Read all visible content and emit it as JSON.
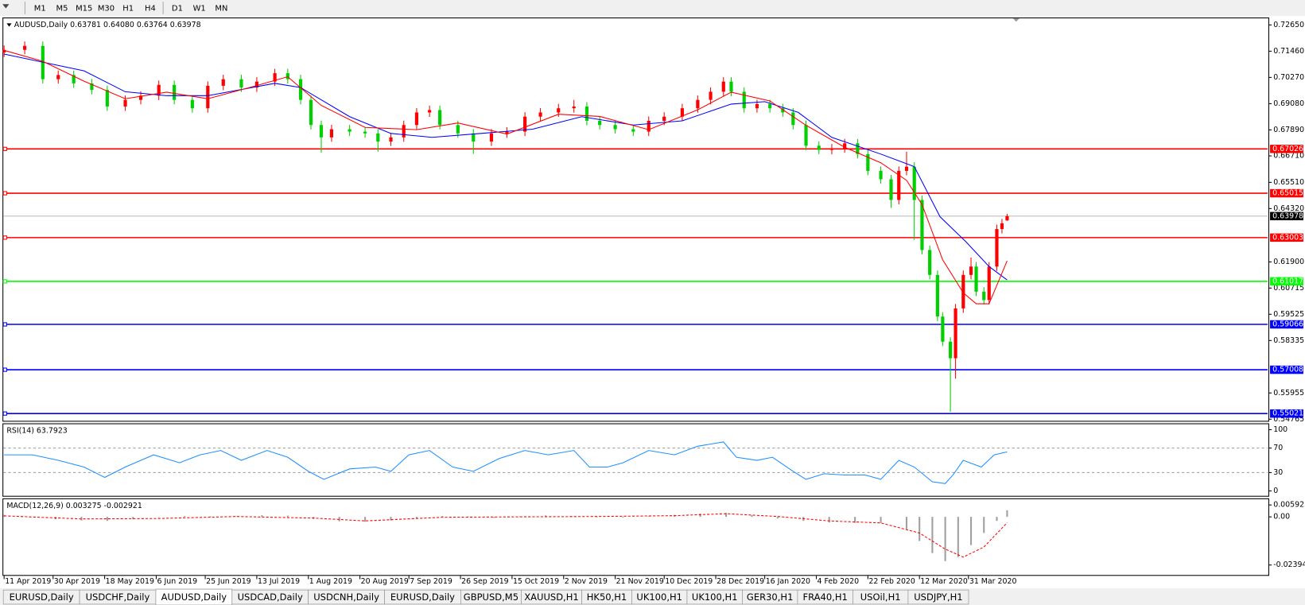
{
  "toolbar": {
    "timeframes": [
      "M1",
      "M5",
      "M15",
      "M30",
      "H1",
      "H4",
      "D1",
      "W1",
      "MN"
    ]
  },
  "tabs": [
    "EURUSD,Daily",
    "USDCHF,Daily",
    "AUDUSD,Daily",
    "USDCAD,Daily",
    "USDCNH,Daily",
    "EURUSD,Daily",
    "GBPUSD,M5",
    "XAUUSD,H1",
    "HK50,H1",
    "UK100,H1",
    "UK100,H1",
    "GER30,H1",
    "FRA40,H1",
    "USOil,H1",
    "USDJPY,H1"
  ],
  "active_tab": 2,
  "chart_data": [
    {
      "type": "candlestick",
      "title": "AUDUSD,Daily  0.63781 0.64080 0.63764 0.63978",
      "x": [
        0,
        8,
        15,
        21,
        27,
        34,
        40,
        47,
        53,
        60,
        66,
        73,
        79,
        85,
        92,
        98,
        105,
        110,
        115,
        119,
        123,
        127,
        134,
        140,
        145,
        150,
        155,
        160,
        165,
        169,
        176,
        182,
        189,
        195,
        202,
        208,
        215,
        221,
        226,
        231,
        237,
        244,
        250,
        256,
        263,
        269,
        274,
        279,
        282,
        287,
        292,
        297,
        302,
        306,
        311,
        316,
        321,
        326,
        331,
        335,
        340,
        344,
        347,
        350,
        353,
        356,
        359,
        362,
        364,
        367,
        369,
        372,
        375,
        377,
        380,
        382,
        385,
        387,
        389
      ],
      "open": [
        0.714,
        0.7152,
        0.717,
        0.7019,
        0.7038,
        0.7,
        0.697,
        0.6895,
        0.6925,
        0.6944,
        0.6993,
        0.6925,
        0.6887,
        0.6989,
        0.7019,
        0.6981,
        0.7008,
        0.7046,
        0.7019,
        0.6925,
        0.6811,
        0.6755,
        0.6792,
        0.6781,
        0.6773,
        0.6736,
        0.6755,
        0.6811,
        0.6868,
        0.6879,
        0.6811,
        0.6773,
        0.6736,
        0.6773,
        0.6781,
        0.6849,
        0.6868,
        0.6887,
        0.6895,
        0.683,
        0.6811,
        0.6792,
        0.6781,
        0.683,
        0.6849,
        0.6887,
        0.6925,
        0.6962,
        0.7008,
        0.6962,
        0.6887,
        0.6906,
        0.6887,
        0.6868,
        0.6811,
        0.6717,
        0.6698,
        0.6705,
        0.6728,
        0.6679,
        0.6603,
        0.6565,
        0.6471,
        0.6603,
        0.6622,
        0.6471,
        0.6244,
        0.6131,
        0.5942,
        0.5828,
        0.5753,
        0.5979,
        0.6131,
        0.6169,
        0.6055,
        0.6017,
        0.6169,
        0.6339,
        0.63781
      ],
      "high": [
        0.7172,
        0.719,
        0.719,
        0.7058,
        0.7058,
        0.702,
        0.699,
        0.6945,
        0.6964,
        0.7013,
        0.7013,
        0.6945,
        0.7009,
        0.7039,
        0.7039,
        0.7028,
        0.7066,
        0.7066,
        0.7039,
        0.6945,
        0.6831,
        0.6812,
        0.6812,
        0.6801,
        0.6793,
        0.6775,
        0.6831,
        0.6888,
        0.6899,
        0.6899,
        0.6831,
        0.6793,
        0.6793,
        0.6801,
        0.6869,
        0.6888,
        0.6907,
        0.6925,
        0.6915,
        0.685,
        0.6831,
        0.6812,
        0.685,
        0.6869,
        0.6907,
        0.6945,
        0.6982,
        0.7028,
        0.7028,
        0.6982,
        0.6926,
        0.6926,
        0.6907,
        0.6888,
        0.6831,
        0.6737,
        0.6725,
        0.6748,
        0.6748,
        0.6699,
        0.6623,
        0.6585,
        0.6623,
        0.669,
        0.6642,
        0.6491,
        0.6264,
        0.6151,
        0.5962,
        0.5848,
        0.5999,
        0.6151,
        0.621,
        0.6189,
        0.6075,
        0.6189,
        0.6359,
        0.6385,
        0.6408
      ],
      "low": [
        0.712,
        0.7132,
        0.6999,
        0.6999,
        0.698,
        0.695,
        0.6875,
        0.6875,
        0.6905,
        0.6924,
        0.6905,
        0.6867,
        0.6867,
        0.6969,
        0.6961,
        0.6961,
        0.6988,
        0.6999,
        0.6905,
        0.6791,
        0.6685,
        0.6735,
        0.6761,
        0.6753,
        0.669,
        0.6716,
        0.6735,
        0.6791,
        0.6848,
        0.6791,
        0.6753,
        0.668,
        0.6716,
        0.6753,
        0.6761,
        0.6829,
        0.6848,
        0.6867,
        0.681,
        0.6791,
        0.6772,
        0.6761,
        0.6761,
        0.681,
        0.6829,
        0.6867,
        0.6905,
        0.6942,
        0.6942,
        0.6867,
        0.6867,
        0.6867,
        0.6848,
        0.6791,
        0.6697,
        0.6678,
        0.6678,
        0.6685,
        0.6659,
        0.6583,
        0.6545,
        0.6435,
        0.6451,
        0.6583,
        0.629,
        0.6224,
        0.6111,
        0.5922,
        0.5808,
        0.551,
        0.566,
        0.5959,
        0.6111,
        0.6035,
        0.5997,
        0.5997,
        0.6149,
        0.6319,
        0.63764
      ],
      "close": [
        0.7152,
        0.717,
        0.7019,
        0.7038,
        0.7,
        0.697,
        0.6895,
        0.6925,
        0.6944,
        0.6993,
        0.6925,
        0.6887,
        0.6989,
        0.7019,
        0.6981,
        0.7008,
        0.7046,
        0.7019,
        0.6925,
        0.6811,
        0.6755,
        0.6792,
        0.6781,
        0.6773,
        0.6736,
        0.6755,
        0.6811,
        0.6868,
        0.6879,
        0.6811,
        0.6773,
        0.6736,
        0.6773,
        0.6781,
        0.6849,
        0.6868,
        0.6887,
        0.6895,
        0.683,
        0.6811,
        0.6792,
        0.6781,
        0.683,
        0.6849,
        0.6887,
        0.6925,
        0.6962,
        0.7008,
        0.6962,
        0.6887,
        0.6906,
        0.6887,
        0.6868,
        0.6811,
        0.6717,
        0.6698,
        0.6705,
        0.6728,
        0.6679,
        0.6603,
        0.6565,
        0.6471,
        0.6603,
        0.6622,
        0.6471,
        0.6244,
        0.6131,
        0.5942,
        0.5828,
        0.5753,
        0.5979,
        0.6131,
        0.6169,
        0.6055,
        0.6017,
        0.6169,
        0.6339,
        0.6365,
        0.63978
      ],
      "up_color": "#ff0000",
      "down_color": "#00d000",
      "series": [
        {
          "color": "#0000ff",
          "x": [
            0,
            31,
            47,
            63,
            79,
            105,
            115,
            134,
            150,
            166,
            185,
            205,
            224,
            244,
            263,
            282,
            295,
            308,
            321,
            340,
            353,
            363,
            373,
            382,
            389
          ],
          "values": [
            0.7133,
            0.7057,
            0.6962,
            0.6944,
            0.6944,
            0.7,
            0.6981,
            0.6849,
            0.6773,
            0.6755,
            0.6773,
            0.6792,
            0.6849,
            0.6811,
            0.683,
            0.6906,
            0.6917,
            0.6868,
            0.6755,
            0.6679,
            0.6622,
            0.6395,
            0.6282,
            0.6169,
            0.6108
          ]
        },
        {
          "color": "#ff0000",
          "x": [
            0,
            15,
            31,
            47,
            63,
            79,
            98,
            110,
            123,
            140,
            160,
            176,
            195,
            215,
            231,
            250,
            269,
            282,
            297,
            311,
            326,
            340,
            350,
            356,
            364,
            372,
            377,
            382,
            389
          ],
          "values": [
            0.715,
            0.71,
            0.701,
            0.693,
            0.696,
            0.693,
            0.699,
            0.703,
            0.69,
            0.68,
            0.679,
            0.682,
            0.677,
            0.686,
            0.685,
            0.679,
            0.688,
            0.696,
            0.692,
            0.681,
            0.671,
            0.664,
            0.656,
            0.645,
            0.62,
            0.605,
            0.6,
            0.6,
            0.6195
          ]
        }
      ],
      "levels": [
        {
          "value": 0.67026,
          "color": "#ff0000"
        },
        {
          "value": 0.65015,
          "color": "#ff0000"
        },
        {
          "value": 0.63003,
          "color": "#ff0000"
        },
        {
          "value": 0.61017,
          "color": "#00ff00"
        },
        {
          "value": 0.59066,
          "color": "#0000ff"
        },
        {
          "value": 0.57008,
          "color": "#0000ff"
        },
        {
          "value": 0.55021,
          "color": "#0000ff"
        }
      ],
      "last": 0.63978,
      "xlim": [
        -0.3,
        490
      ],
      "ylim": [
        0.5469,
        0.7295
      ],
      "yticks": [
        {
          "value": 0.7265,
          "label": "0.72650"
        },
        {
          "value": 0.7146,
          "label": "0.71460"
        },
        {
          "value": 0.7027,
          "label": "0.70270"
        },
        {
          "value": 0.6908,
          "label": "0.69080"
        },
        {
          "value": 0.6789,
          "label": "0.67890"
        },
        {
          "value": 0.6671,
          "label": "0.66710"
        },
        {
          "value": 0.6551,
          "label": "0.65510"
        },
        {
          "value": 0.6432,
          "label": "0.64320"
        },
        {
          "value": 0.619,
          "label": "0.61900"
        },
        0.60715,
        0.59525,
        0.58335,
        0.55955,
        0.54765
      ],
      "xticks": [
        {
          "value": 0,
          "label": "11 Apr 2019"
        },
        {
          "value": 19,
          "label": "30 Apr 2019"
        },
        {
          "value": 39,
          "label": "18 May 2019"
        },
        {
          "value": 59,
          "label": "6 Jun 2019"
        },
        {
          "value": 78,
          "label": "25 Jun 2019"
        },
        {
          "value": 98,
          "label": "13 Jul 2019"
        },
        {
          "value": 118,
          "label": "1 Aug 2019"
        },
        {
          "value": 138,
          "label": "20 Aug 2019"
        },
        {
          "value": 157,
          "label": "7 Sep 2019"
        },
        {
          "value": 177,
          "label": "26 Sep 2019"
        },
        {
          "value": 197,
          "label": "15 Oct 2019"
        },
        {
          "value": 217,
          "label": "2 Nov 2019"
        },
        {
          "value": 237,
          "label": "21 Nov 2019"
        },
        {
          "value": 256,
          "label": "10 Dec 2019"
        },
        {
          "value": 276,
          "label": "28 Dec 2019"
        },
        {
          "value": 295,
          "label": "16 Jan 2020"
        },
        {
          "value": 315,
          "label": "4 Feb 2020"
        },
        {
          "value": 335,
          "label": "22 Feb 2020"
        },
        {
          "value": 355,
          "label": "12 Mar 2020"
        },
        {
          "value": 374,
          "label": "31 Mar 2020"
        }
      ]
    },
    {
      "type": "line",
      "title": "RSI(14) 63.7923",
      "color": "#1e90ff",
      "x": [
        0,
        11,
        21,
        31,
        39,
        47,
        58,
        68,
        76,
        84,
        92,
        102,
        110,
        118,
        124,
        134,
        144,
        150,
        157,
        165,
        174,
        182,
        192,
        202,
        211,
        221,
        227,
        234,
        240,
        250,
        260,
        269,
        279,
        284,
        292,
        298,
        306,
        311,
        318,
        326,
        334,
        340,
        347,
        353,
        360,
        365,
        368,
        372,
        379,
        384,
        389
      ],
      "values": [
        59,
        59,
        50,
        39,
        22,
        39,
        59,
        46,
        59,
        66,
        50,
        66,
        55,
        32,
        19,
        36,
        39,
        32,
        59,
        66,
        39,
        32,
        53,
        66,
        59,
        66,
        39,
        39,
        46,
        66,
        59,
        73,
        80,
        55,
        50,
        55,
        32,
        19,
        28,
        26,
        26,
        19,
        50,
        39,
        15,
        12,
        26,
        50,
        39,
        59,
        63.7923
      ],
      "dashed_levels": [
        70,
        30
      ],
      "xlim": [
        -0.3,
        490
      ],
      "ylim": [
        -8,
        109
      ],
      "yticks": [
        100,
        70,
        30,
        0
      ]
    },
    {
      "type": "macd",
      "title": "MACD(12,26,9) 0.003275 -0.002921",
      "bars": {
        "color": "#a0a0a0",
        "x": [
          0,
          10,
          20,
          30,
          40,
          50,
          60,
          70,
          80,
          90,
          100,
          110,
          120,
          130,
          140,
          150,
          160,
          170,
          180,
          190,
          200,
          210,
          220,
          230,
          240,
          250,
          260,
          270,
          280,
          290,
          300,
          310,
          320,
          330,
          340,
          350,
          355,
          360,
          365,
          370,
          375,
          380,
          385,
          389
        ],
        "values": [
          0.001,
          -0.0003,
          -0.0012,
          -0.0018,
          -0.002,
          -0.0012,
          -0.0002,
          0.0004,
          0.0003,
          0.0002,
          0.0008,
          0.0006,
          -0.001,
          -0.0022,
          -0.0024,
          -0.0018,
          -0.0006,
          0.0004,
          0.0002,
          -0.0005,
          0.0003,
          0.0007,
          0.0004,
          -0.0002,
          -0.0004,
          0.0003,
          0.001,
          0.0016,
          0.002,
          0.0008,
          -0.0008,
          -0.002,
          -0.0028,
          -0.003,
          -0.003,
          -0.006,
          -0.012,
          -0.018,
          -0.022,
          -0.02,
          -0.014,
          -0.008,
          -0.002,
          0.003275
        ]
      },
      "signal": {
        "color": "#ff0000",
        "x": [
          0,
          30,
          60,
          90,
          120,
          140,
          170,
          200,
          230,
          260,
          280,
          300,
          320,
          340,
          355,
          365,
          372,
          380,
          389
        ],
        "values": [
          0.0005,
          -0.001,
          -0.0008,
          0.0002,
          -0.0006,
          -0.002,
          -0.0002,
          0.0,
          0.0002,
          0.0006,
          0.0016,
          0.0002,
          -0.002,
          -0.003,
          -0.008,
          -0.016,
          -0.02,
          -0.015,
          -0.002921
        ]
      },
      "xlim": [
        -0.3,
        490
      ],
      "ylim": [
        -0.0289,
        0.0088
      ],
      "yticks": [
        0.005923,
        {
          "value": 0,
          "label": "0.00"
        },
        -0.023944
      ]
    }
  ]
}
